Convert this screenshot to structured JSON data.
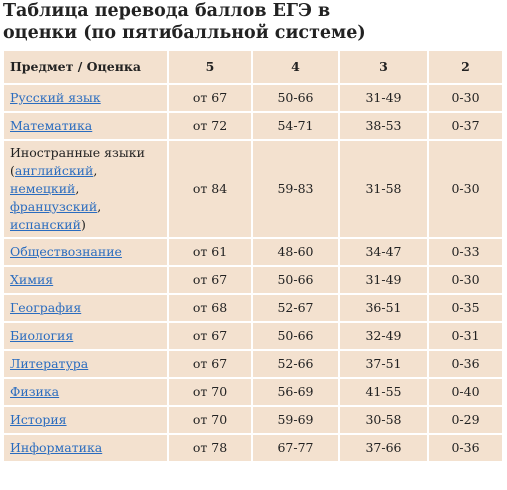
{
  "page": {
    "title": "Таблица перевода баллов ЕГЭ в оценки (по пятибалльной системе)"
  },
  "table": {
    "headers": [
      "Предмет / Оценка",
      "5",
      "4",
      "3",
      "2"
    ],
    "rows": [
      {
        "subject": "Русский язык",
        "values": [
          "от 67",
          "50-66",
          "31-49",
          "0-30"
        ]
      },
      {
        "subject": "Математика",
        "values": [
          "от 72",
          "54-71",
          "38-53",
          "0-37"
        ]
      },
      {
        "subject_prefix": "Иностранные языки (",
        "subject_links": [
          "английский",
          "немецкий",
          "французский",
          "испанский"
        ],
        "subject_suffix": ")",
        "values": [
          "от 84",
          "59-83",
          "31-58",
          "0-30"
        ]
      },
      {
        "subject": "Обществознание",
        "values": [
          "от 61",
          "48-60",
          "34-47",
          "0-33"
        ]
      },
      {
        "subject": "Химия",
        "values": [
          "от 67",
          "50-66",
          "31-49",
          "0-30"
        ]
      },
      {
        "subject": "География",
        "values": [
          "от 68",
          "52-67",
          "36-51",
          "0-35"
        ]
      },
      {
        "subject": "Биология",
        "values": [
          "от 67",
          "50-66",
          "32-49",
          "0-31"
        ]
      },
      {
        "subject": "Литература",
        "values": [
          "от 67",
          "52-66",
          "37-51",
          "0-36"
        ]
      },
      {
        "subject": "Физика",
        "values": [
          "от 70",
          "56-69",
          "41-55",
          "0-40"
        ]
      },
      {
        "subject": "История",
        "values": [
          "от 70",
          "59-69",
          "30-58",
          "0-29"
        ]
      },
      {
        "subject": "Информатика",
        "values": [
          "от 78",
          "67-77",
          "37-66",
          "0-36"
        ]
      }
    ]
  },
  "colors": {
    "cell_background": "#f3e1cf",
    "link": "#2a6cbf",
    "text": "#222222"
  }
}
